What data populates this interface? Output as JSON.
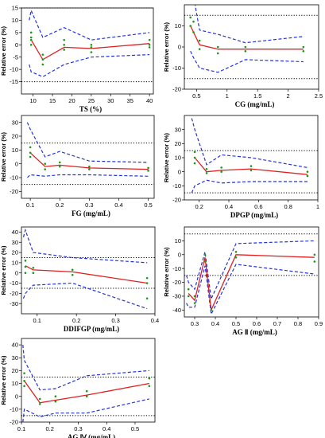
{
  "chart_data": [
    {
      "type": "line",
      "xlabel": "TS  (%)",
      "ylabel": "Relative error  (%)",
      "xlim": [
        7,
        41
      ],
      "ylim": [
        -20,
        15
      ],
      "xticks": [
        10,
        15,
        20,
        25,
        30,
        35,
        40
      ],
      "yticks": [
        -15,
        -10,
        -5,
        0,
        5,
        10,
        15
      ],
      "limits": [
        15,
        -15
      ],
      "mean": {
        "x": [
          9.5,
          12.5,
          18,
          25,
          40
        ],
        "y": [
          2,
          -6,
          -1,
          -1.5,
          0.5
        ]
      },
      "upper": {
        "x": [
          9,
          9.5,
          12.5,
          18,
          25,
          40
        ],
        "y": [
          10,
          14,
          3,
          7,
          2,
          5
        ]
      },
      "lower": {
        "x": [
          9,
          9.5,
          12.5,
          18,
          25,
          40
        ],
        "y": [
          -8,
          -11,
          -13,
          -8,
          -5,
          -4
        ]
      },
      "points": {
        "x": [
          9.5,
          9.5,
          9.5,
          9.5,
          12.5,
          12.5,
          12.5,
          18,
          18,
          18,
          25,
          25,
          25,
          40,
          40,
          40
        ],
        "y": [
          5,
          3,
          2,
          0,
          -4,
          -6,
          -8,
          2,
          0,
          -2,
          0,
          -1,
          -3,
          2,
          0,
          -1
        ]
      }
    },
    {
      "type": "line",
      "xlabel": "CG   (mg/mL)",
      "ylabel": "Relative error  (%)",
      "xlim": [
        0.3,
        2.5
      ],
      "ylim": [
        -20,
        20
      ],
      "xticks": [
        0.5,
        1.0,
        1.5,
        2.0,
        2.5
      ],
      "yticks": [
        -20,
        -10,
        0,
        10
      ],
      "limits": [
        15,
        -15
      ],
      "mean": {
        "x": [
          0.4,
          0.55,
          0.85,
          1.3,
          2.25
        ],
        "y": [
          10,
          1,
          -1,
          -1,
          -1
        ]
      },
      "upper": {
        "x": [
          0.4,
          0.45,
          0.55,
          0.85,
          1.3,
          2.25
        ],
        "y": [
          20,
          24,
          8,
          6,
          2,
          5
        ]
      },
      "lower": {
        "x": [
          0.4,
          0.45,
          0.55,
          0.85,
          1.3,
          2.25
        ],
        "y": [
          -2,
          -5,
          -10,
          -12,
          -6,
          -7
        ]
      },
      "points": {
        "x": [
          0.4,
          0.4,
          0.45,
          0.45,
          0.55,
          0.55,
          0.85,
          0.85,
          1.3,
          1.3,
          2.25,
          2.25
        ],
        "y": [
          14,
          10,
          12,
          7,
          3,
          -1,
          0,
          -3,
          0,
          -2,
          0,
          -2
        ]
      }
    },
    {
      "type": "line",
      "xlabel": "FG   (mg/mL)",
      "ylabel": "Relative error  (%)",
      "xlim": [
        0.07,
        0.52
      ],
      "ylim": [
        -25,
        35
      ],
      "xticks": [
        0.1,
        0.2,
        0.3,
        0.4,
        0.5
      ],
      "yticks": [
        -20,
        -10,
        0,
        10,
        20,
        30
      ],
      "limits": [
        15,
        -15
      ],
      "mean": {
        "x": [
          0.1,
          0.15,
          0.2,
          0.3,
          0.5
        ],
        "y": [
          8,
          -2,
          -1,
          -3,
          -4
        ]
      },
      "upper": {
        "x": [
          0.09,
          0.1,
          0.15,
          0.2,
          0.3,
          0.5
        ],
        "y": [
          30,
          25,
          5,
          9,
          2,
          1
        ]
      },
      "lower": {
        "x": [
          0.09,
          0.1,
          0.15,
          0.2,
          0.3,
          0.5
        ],
        "y": [
          -10,
          -8,
          -9,
          -8,
          -8,
          -9
        ]
      },
      "points": {
        "x": [
          0.1,
          0.1,
          0.1,
          0.15,
          0.15,
          0.2,
          0.2,
          0.3,
          0.3,
          0.5,
          0.5
        ],
        "y": [
          12,
          8,
          5,
          0,
          -4,
          1,
          -2,
          -2,
          -4,
          -3,
          -5
        ]
      }
    },
    {
      "type": "line",
      "xlabel": "DPGP   (mg/mL)",
      "ylabel": "Relative error  (%)",
      "xlim": [
        0.1,
        1.0
      ],
      "ylim": [
        -20,
        40
      ],
      "xticks": [
        0.2,
        0.4,
        0.6,
        0.8,
        1.0
      ],
      "yticks": [
        -20,
        -10,
        0,
        10,
        20,
        30
      ],
      "limits": [
        15,
        -15
      ],
      "mean": {
        "x": [
          0.17,
          0.25,
          0.35,
          0.55,
          0.93
        ],
        "y": [
          10,
          0,
          1,
          2,
          -2
        ]
      },
      "upper": {
        "x": [
          0.15,
          0.17,
          0.25,
          0.35,
          0.55,
          0.93
        ],
        "y": [
          38,
          30,
          5,
          12,
          10,
          3
        ]
      },
      "lower": {
        "x": [
          0.15,
          0.17,
          0.25,
          0.35,
          0.55,
          0.93
        ],
        "y": [
          -15,
          -10,
          -6,
          -8,
          -7,
          -7
        ]
      },
      "points": {
        "x": [
          0.17,
          0.17,
          0.17,
          0.25,
          0.25,
          0.35,
          0.35,
          0.55,
          0.55,
          0.93,
          0.93
        ],
        "y": [
          14,
          10,
          6,
          2,
          -1,
          3,
          0,
          4,
          1,
          0,
          -3
        ]
      }
    },
    {
      "type": "line",
      "xlabel": "DDIFGP   (mg/mL)",
      "ylabel": "Relative error  (%)",
      "xlim": [
        0.06,
        0.4
      ],
      "ylim": [
        -40,
        45
      ],
      "xticks": [
        0.1,
        0.2,
        0.3,
        0.4
      ],
      "yticks": [
        -30,
        -20,
        -10,
        0,
        10,
        20,
        30,
        40
      ],
      "limits": [
        15,
        -15
      ],
      "mean": {
        "x": [
          0.07,
          0.09,
          0.19,
          0.38
        ],
        "y": [
          7,
          3,
          1,
          -10
        ]
      },
      "upper": {
        "x": [
          0.065,
          0.07,
          0.09,
          0.19,
          0.38
        ],
        "y": [
          35,
          42,
          20,
          15,
          10
        ]
      },
      "lower": {
        "x": [
          0.065,
          0.07,
          0.09,
          0.19,
          0.38
        ],
        "y": [
          -25,
          -20,
          -12,
          -10,
          -35
        ]
      },
      "points": {
        "x": [
          0.07,
          0.07,
          0.07,
          0.09,
          0.09,
          0.19,
          0.19,
          0.38,
          0.38,
          0.38
        ],
        "y": [
          12,
          6,
          0,
          5,
          0,
          3,
          -2,
          -5,
          -10,
          -25
        ]
      }
    },
    {
      "type": "line",
      "xlabel": "AG Ⅱ   (mg/mL)",
      "ylabel": "Relative error  (%)",
      "xlim": [
        0.25,
        0.9
      ],
      "ylim": [
        -45,
        20
      ],
      "xticks": [
        0.3,
        0.4,
        0.5,
        0.6,
        0.7,
        0.8,
        0.9
      ],
      "yticks": [
        -40,
        -30,
        -20,
        -10,
        0,
        10
      ],
      "limits": [
        15,
        -15
      ],
      "mean": {
        "x": [
          0.27,
          0.3,
          0.35,
          0.38,
          0.5,
          0.88
        ],
        "y": [
          -28,
          -33,
          -2,
          -40,
          0,
          -2
        ]
      },
      "upper": {
        "x": [
          0.26,
          0.27,
          0.3,
          0.35,
          0.38,
          0.5,
          0.88
        ],
        "y": [
          -15,
          -20,
          -25,
          2,
          -32,
          8,
          10
        ]
      },
      "lower": {
        "x": [
          0.26,
          0.27,
          0.3,
          0.35,
          0.38,
          0.5,
          0.88
        ],
        "y": [
          -35,
          -38,
          -38,
          -8,
          -43,
          -7,
          -14
        ]
      },
      "points": {
        "x": [
          0.27,
          0.27,
          0.3,
          0.3,
          0.35,
          0.35,
          0.38,
          0.5,
          0.5,
          0.88,
          0.88
        ],
        "y": [
          -25,
          -30,
          -30,
          -35,
          0,
          -5,
          -40,
          2,
          -2,
          0,
          -5
        ]
      }
    },
    {
      "type": "line",
      "xlabel": "AG Ⅳ  (mg/mL)",
      "ylabel": "Relative error  (%)",
      "xlim": [
        0.1,
        0.57
      ],
      "ylim": [
        -20,
        45
      ],
      "xticks": [
        0.1,
        0.2,
        0.3,
        0.4,
        0.5
      ],
      "yticks": [
        -20,
        -10,
        0,
        10,
        20,
        30,
        40
      ],
      "limits": [
        15,
        -15
      ],
      "mean": {
        "x": [
          0.11,
          0.165,
          0.22,
          0.33,
          0.55
        ],
        "y": [
          12,
          -5,
          -3,
          1,
          10
        ]
      },
      "upper": {
        "x": [
          0.105,
          0.11,
          0.165,
          0.22,
          0.33,
          0.55
        ],
        "y": [
          40,
          28,
          5,
          6,
          16,
          20
        ]
      },
      "lower": {
        "x": [
          0.105,
          0.11,
          0.165,
          0.22,
          0.33,
          0.55
        ],
        "y": [
          -20,
          -10,
          -16,
          -13,
          -13,
          -2
        ]
      },
      "points": {
        "x": [
          0.11,
          0.11,
          0.11,
          0.165,
          0.165,
          0.22,
          0.22,
          0.33,
          0.33,
          0.55,
          0.55
        ],
        "y": [
          18,
          12,
          8,
          -2,
          -6,
          0,
          -4,
          4,
          0,
          14,
          8
        ]
      }
    }
  ]
}
